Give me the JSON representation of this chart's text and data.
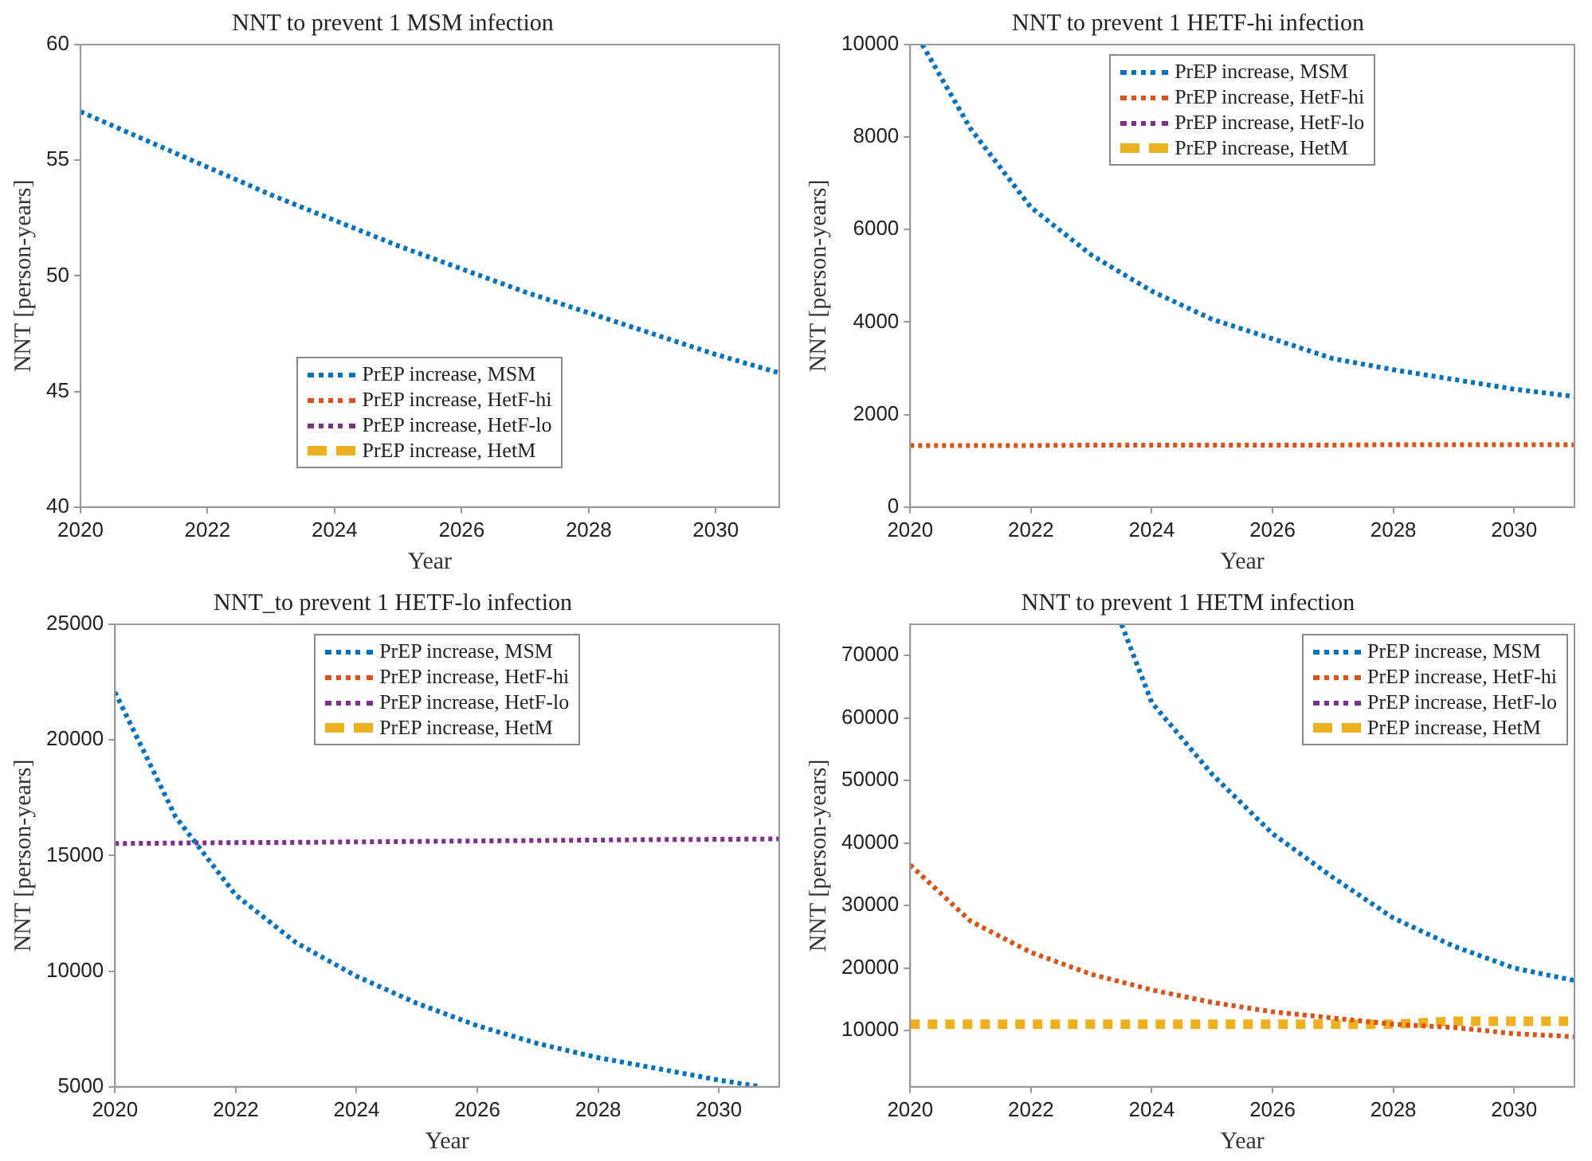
{
  "chart_data": [
    {
      "type": "line",
      "title": "NNT to prevent 1 MSM infection",
      "xlabel": "Year",
      "ylabel": "NNT [person-years]",
      "x": [
        2020,
        2021,
        2022,
        2023,
        2024,
        2025,
        2026,
        2027,
        2028,
        2029,
        2030,
        2031
      ],
      "xlim": [
        2020,
        2031
      ],
      "xticks": [
        2020,
        2022,
        2024,
        2026,
        2028,
        2030
      ],
      "ylim": [
        40,
        60
      ],
      "yticks": [
        40,
        45,
        50,
        55,
        60
      ],
      "grid": false,
      "legend": "bottom",
      "series": [
        {
          "name": "PrEP increase, MSM",
          "color": "#0072bd",
          "line_style": "dotted",
          "values": [
            57.1,
            55.9,
            54.7,
            53.5,
            52.4,
            51.3,
            50.3,
            49.3,
            48.4,
            47.5,
            46.6,
            45.8
          ]
        },
        {
          "name": "PrEP increase, HetF-hi",
          "color": "#d95319",
          "line_style": "dotted",
          "values": [
            null,
            null,
            null,
            null,
            null,
            null,
            null,
            null,
            null,
            null,
            null,
            null
          ]
        },
        {
          "name": "PrEP increase, HetF-lo",
          "color": "#7e2f8e",
          "line_style": "dotted",
          "values": [
            null,
            null,
            null,
            null,
            null,
            null,
            null,
            null,
            null,
            null,
            null,
            null
          ]
        },
        {
          "name": "PrEP increase, HetM",
          "color": "#edb120",
          "line_style": "dashed",
          "values": [
            null,
            null,
            null,
            null,
            null,
            null,
            null,
            null,
            null,
            null,
            null,
            null
          ]
        }
      ]
    },
    {
      "type": "line",
      "title": "NNT to prevent 1 HETF-hi infection",
      "xlabel": "Year",
      "ylabel": "NNT [person-years]",
      "x": [
        2020,
        2021,
        2022,
        2023,
        2024,
        2025,
        2026,
        2027,
        2028,
        2029,
        2030,
        2031
      ],
      "xlim": [
        2020,
        2031
      ],
      "xticks": [
        2020,
        2022,
        2024,
        2026,
        2028,
        2030
      ],
      "ylim": [
        0,
        10000
      ],
      "yticks": [
        0,
        2000,
        4000,
        6000,
        8000,
        10000
      ],
      "grid": false,
      "legend": "top",
      "series": [
        {
          "name": "PrEP increase, MSM",
          "color": "#0072bd",
          "line_style": "dotted",
          "x": [
            2020.2,
            2021,
            2022,
            2023,
            2024,
            2025,
            2026,
            2027,
            2028,
            2029,
            2030,
            2031
          ],
          "values": [
            10000,
            8180,
            6480,
            5450,
            4670,
            4060,
            3640,
            3210,
            2970,
            2760,
            2550,
            2390
          ]
        },
        {
          "name": "PrEP increase, HetF-hi",
          "color": "#d95319",
          "line_style": "dotted",
          "values": [
            1330,
            1330,
            1330,
            1340,
            1340,
            1340,
            1340,
            1340,
            1350,
            1350,
            1350,
            1350
          ]
        },
        {
          "name": "PrEP increase, HetF-lo",
          "color": "#7e2f8e",
          "line_style": "dotted",
          "values": [
            null,
            null,
            null,
            null,
            null,
            null,
            null,
            null,
            null,
            null,
            null,
            null
          ]
        },
        {
          "name": "PrEP increase, HetM",
          "color": "#edb120",
          "line_style": "dashed",
          "values": [
            null,
            null,
            null,
            null,
            null,
            null,
            null,
            null,
            null,
            null,
            null,
            null
          ]
        }
      ]
    },
    {
      "type": "line",
      "title": "NNT_to prevent 1 HETF-lo infection",
      "xlabel": "Year",
      "ylabel": "NNT [person-years]",
      "x": [
        2020,
        2021,
        2022,
        2023,
        2024,
        2025,
        2026,
        2027,
        2028,
        2029,
        2030,
        2031
      ],
      "xlim": [
        2020,
        2031
      ],
      "xticks": [
        2020,
        2022,
        2024,
        2026,
        2028,
        2030
      ],
      "ylim": [
        5000,
        25000
      ],
      "yticks": [
        5000,
        10000,
        15000,
        20000,
        25000
      ],
      "grid": false,
      "legend": "top",
      "series": [
        {
          "name": "PrEP increase, MSM",
          "color": "#0072bd",
          "line_style": "dotted",
          "x": [
            2020,
            2021,
            2022,
            2023,
            2024,
            2025,
            2026,
            2027,
            2028,
            2029,
            2030,
            2030.7
          ],
          "values": [
            22070,
            16690,
            13290,
            11230,
            9780,
            8610,
            7640,
            6870,
            6260,
            5780,
            5290,
            5000
          ]
        },
        {
          "name": "PrEP increase, HetF-hi",
          "color": "#d95319",
          "line_style": "dotted",
          "values": [
            null,
            null,
            null,
            null,
            null,
            null,
            null,
            null,
            null,
            null,
            null,
            null
          ]
        },
        {
          "name": "PrEP increase, HetF-lo",
          "color": "#7e2f8e",
          "line_style": "dotted",
          "values": [
            15520,
            15540,
            15560,
            15570,
            15590,
            15610,
            15630,
            15650,
            15670,
            15690,
            15700,
            15720
          ]
        },
        {
          "name": "PrEP increase, HetM",
          "color": "#edb120",
          "line_style": "dashed",
          "values": [
            null,
            null,
            null,
            null,
            null,
            null,
            null,
            null,
            null,
            null,
            null,
            null
          ]
        }
      ]
    },
    {
      "type": "line",
      "title": "NNT to prevent 1 HETM infection",
      "xlabel": "Year",
      "ylabel": "NNT [person-years]",
      "x": [
        2020,
        2021,
        2022,
        2023,
        2024,
        2025,
        2026,
        2027,
        2028,
        2029,
        2030,
        2031
      ],
      "xlim": [
        2020,
        2031
      ],
      "xticks": [
        2020,
        2022,
        2024,
        2026,
        2028,
        2030
      ],
      "ylim": [
        1000,
        75000
      ],
      "yticks": [
        10000,
        20000,
        30000,
        40000,
        50000,
        60000,
        70000
      ],
      "grid": false,
      "legend": "top right",
      "series": [
        {
          "name": "PrEP increase, MSM",
          "color": "#0072bd",
          "line_style": "dotted",
          "x": [
            2023.5,
            2024,
            2025,
            2026,
            2027,
            2028,
            2029,
            2030,
            2031
          ],
          "values": [
            75000,
            62500,
            51000,
            41500,
            34500,
            28000,
            23500,
            20000,
            18000
          ]
        },
        {
          "name": "PrEP increase, HetF-hi",
          "color": "#d95319",
          "line_style": "dotted",
          "values": [
            36500,
            27500,
            22500,
            19000,
            16500,
            14500,
            13000,
            12000,
            11000,
            10500,
            9500,
            9000
          ]
        },
        {
          "name": "PrEP increase, HetF-lo",
          "color": "#7e2f8e",
          "line_style": "dotted",
          "values": [
            null,
            null,
            null,
            null,
            null,
            null,
            null,
            null,
            null,
            null,
            null,
            null
          ]
        },
        {
          "name": "PrEP increase, HetM",
          "color": "#edb120",
          "line_style": "dashed",
          "values": [
            11000,
            11000,
            11000,
            11000,
            11000,
            11000,
            11000,
            11000,
            11000,
            11500,
            11500,
            11500
          ]
        }
      ]
    }
  ]
}
